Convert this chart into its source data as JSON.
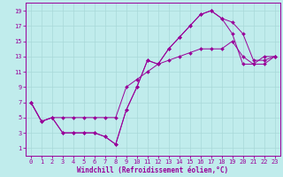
{
  "title": "",
  "xlabel": "Windchill (Refroidissement éolien,°C)",
  "bg_color": "#c0ecec",
  "grid_color": "#a8d8d8",
  "line_color": "#990099",
  "xlim": [
    -0.5,
    23.5
  ],
  "ylim": [
    0,
    20
  ],
  "xticks": [
    0,
    1,
    2,
    3,
    4,
    5,
    6,
    7,
    8,
    9,
    10,
    11,
    12,
    13,
    14,
    15,
    16,
    17,
    18,
    19,
    20,
    21,
    22,
    23
  ],
  "yticks": [
    1,
    3,
    5,
    7,
    9,
    11,
    13,
    15,
    17,
    19
  ],
  "line1_x": [
    0,
    1,
    2,
    3,
    4,
    5,
    6,
    7,
    8,
    9,
    10,
    11,
    12,
    13,
    14,
    15,
    16,
    17,
    18,
    19,
    20,
    21,
    22,
    23
  ],
  "line1_y": [
    7,
    4.5,
    5,
    3,
    3,
    3,
    3,
    2.5,
    1.5,
    6,
    9,
    12.5,
    12,
    14,
    15.5,
    17,
    18.5,
    19,
    18,
    16,
    12,
    12,
    13,
    13
  ],
  "line2_x": [
    0,
    1,
    2,
    3,
    4,
    5,
    6,
    7,
    8,
    9,
    10,
    11,
    12,
    13,
    14,
    15,
    16,
    17,
    18,
    19,
    20,
    21,
    22,
    23
  ],
  "line2_y": [
    7,
    4.5,
    5,
    3,
    3,
    3,
    3,
    2.5,
    1.5,
    6,
    9,
    12.5,
    12,
    14,
    15.5,
    17,
    18.5,
    19,
    18,
    17.5,
    16,
    12.5,
    12.5,
    13
  ],
  "line3_x": [
    0,
    1,
    2,
    3,
    4,
    5,
    6,
    7,
    8,
    9,
    10,
    11,
    12,
    13,
    14,
    15,
    16,
    17,
    18,
    19,
    20,
    21,
    22,
    23
  ],
  "line3_y": [
    7,
    4.5,
    5,
    5,
    5,
    5,
    5,
    5,
    5,
    9,
    10,
    11,
    12,
    12.5,
    13,
    13.5,
    14,
    14,
    14,
    15,
    13,
    12,
    12,
    13
  ],
  "markersize": 2.0,
  "linewidth": 0.7,
  "xlabel_fontsize": 5.5,
  "tick_fontsize": 5
}
